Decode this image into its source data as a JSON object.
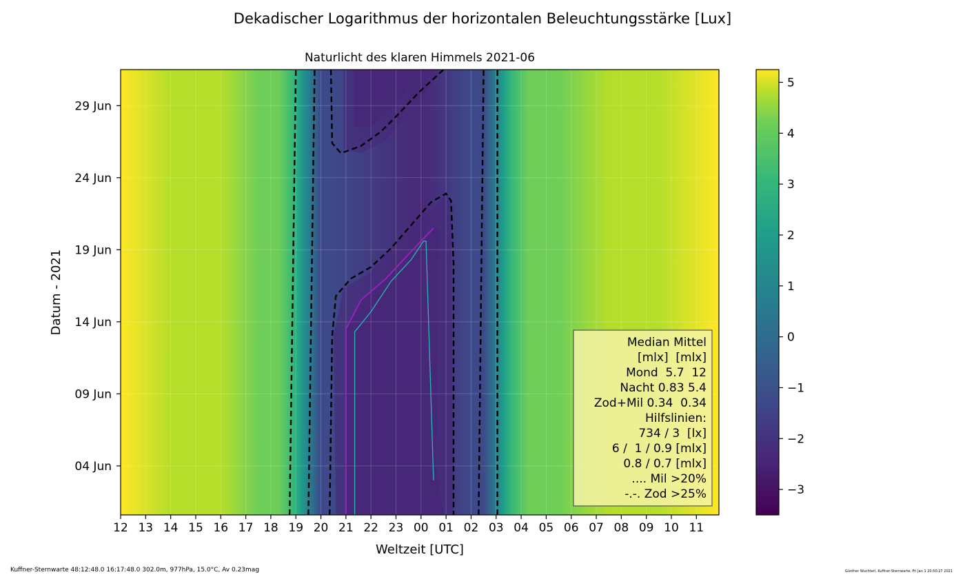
{
  "chart_data": {
    "type": "heatmap",
    "title": "Dekadischer Logarithmus der horizontalen Beleuchtungsstärke [Lux]",
    "subtitle": "Naturlicht des klaren Himmels 2021-06",
    "xlabel": "Weltzeit [UTC]",
    "ylabel": "Datum - 2021",
    "x_ticks": [
      "12",
      "13",
      "14",
      "15",
      "16",
      "17",
      "18",
      "19",
      "20",
      "21",
      "22",
      "23",
      "00",
      "01",
      "02",
      "03",
      "04",
      "05",
      "06",
      "07",
      "08",
      "09",
      "10",
      "11"
    ],
    "y_ticks": [
      {
        "day": 4,
        "label": "04 Jun"
      },
      {
        "day": 9,
        "label": "09 Jun"
      },
      {
        "day": 14,
        "label": "14 Jun"
      },
      {
        "day": 19,
        "label": "19 Jun"
      },
      {
        "day": 24,
        "label": "24 Jun"
      },
      {
        "day": 29,
        "label": "29 Jun"
      }
    ],
    "xlim_hours_from_12": [
      0,
      23.9
    ],
    "ylim_day": [
      0.6,
      31.5
    ],
    "colorbar": {
      "ticks": [
        5,
        4,
        3,
        2,
        1,
        0,
        -1,
        -2,
        -3
      ],
      "tick_labels": [
        "5",
        "4",
        "3",
        "2",
        "1",
        "0",
        "−1",
        "−2",
        "−3"
      ],
      "range": [
        -3.5,
        5.25
      ]
    },
    "twilight_lines_utc": {
      "dusk_outer": [
        [
          0.6,
          18.75
        ],
        [
          31.5,
          19.0
        ]
      ],
      "dusk_inner": [
        [
          0.6,
          19.5
        ],
        [
          31.5,
          19.75
        ]
      ],
      "dawn_inner": [
        [
          0.6,
          2.3
        ],
        [
          31.5,
          2.5
        ]
      ],
      "dawn_outer": [
        [
          0.6,
          3.05
        ],
        [
          31.5,
          3.05
        ]
      ]
    },
    "grid": true,
    "legend_box": {
      "lines": [
        "Median Mittel",
        "[mlx]  [mlx]",
        "Mond  5.7  12",
        "Nacht 0.83 5.4",
        "Zod+Mil 0.34  0.34",
        "Hilfslinien:",
        "734 / 3  [lx]",
        "6 /  1 / 0.9 [mlx]",
        "0.8 / 0.7 [mlx]",
        ".... Mil >20%",
        "-.-. Zod >25%"
      ],
      "placement": "bottom-right"
    }
  },
  "footer": {
    "left": "Kuffner-Sternwarte 48:12:48.0 16:17:48.0 302.0m,  977hPa, 15.0°C, Av 0.23mag",
    "right": "Günther Wuchterl, Kuffner-Sternwarte, Fri Jan  1 20:50:27 2021"
  },
  "colors": {
    "low": "#46206a",
    "night": "#4a3f86",
    "mid": "#26828e",
    "high": "#f2e629",
    "moon_contour": "#a020c0",
    "cyan_contour": "#2ab5b5"
  }
}
